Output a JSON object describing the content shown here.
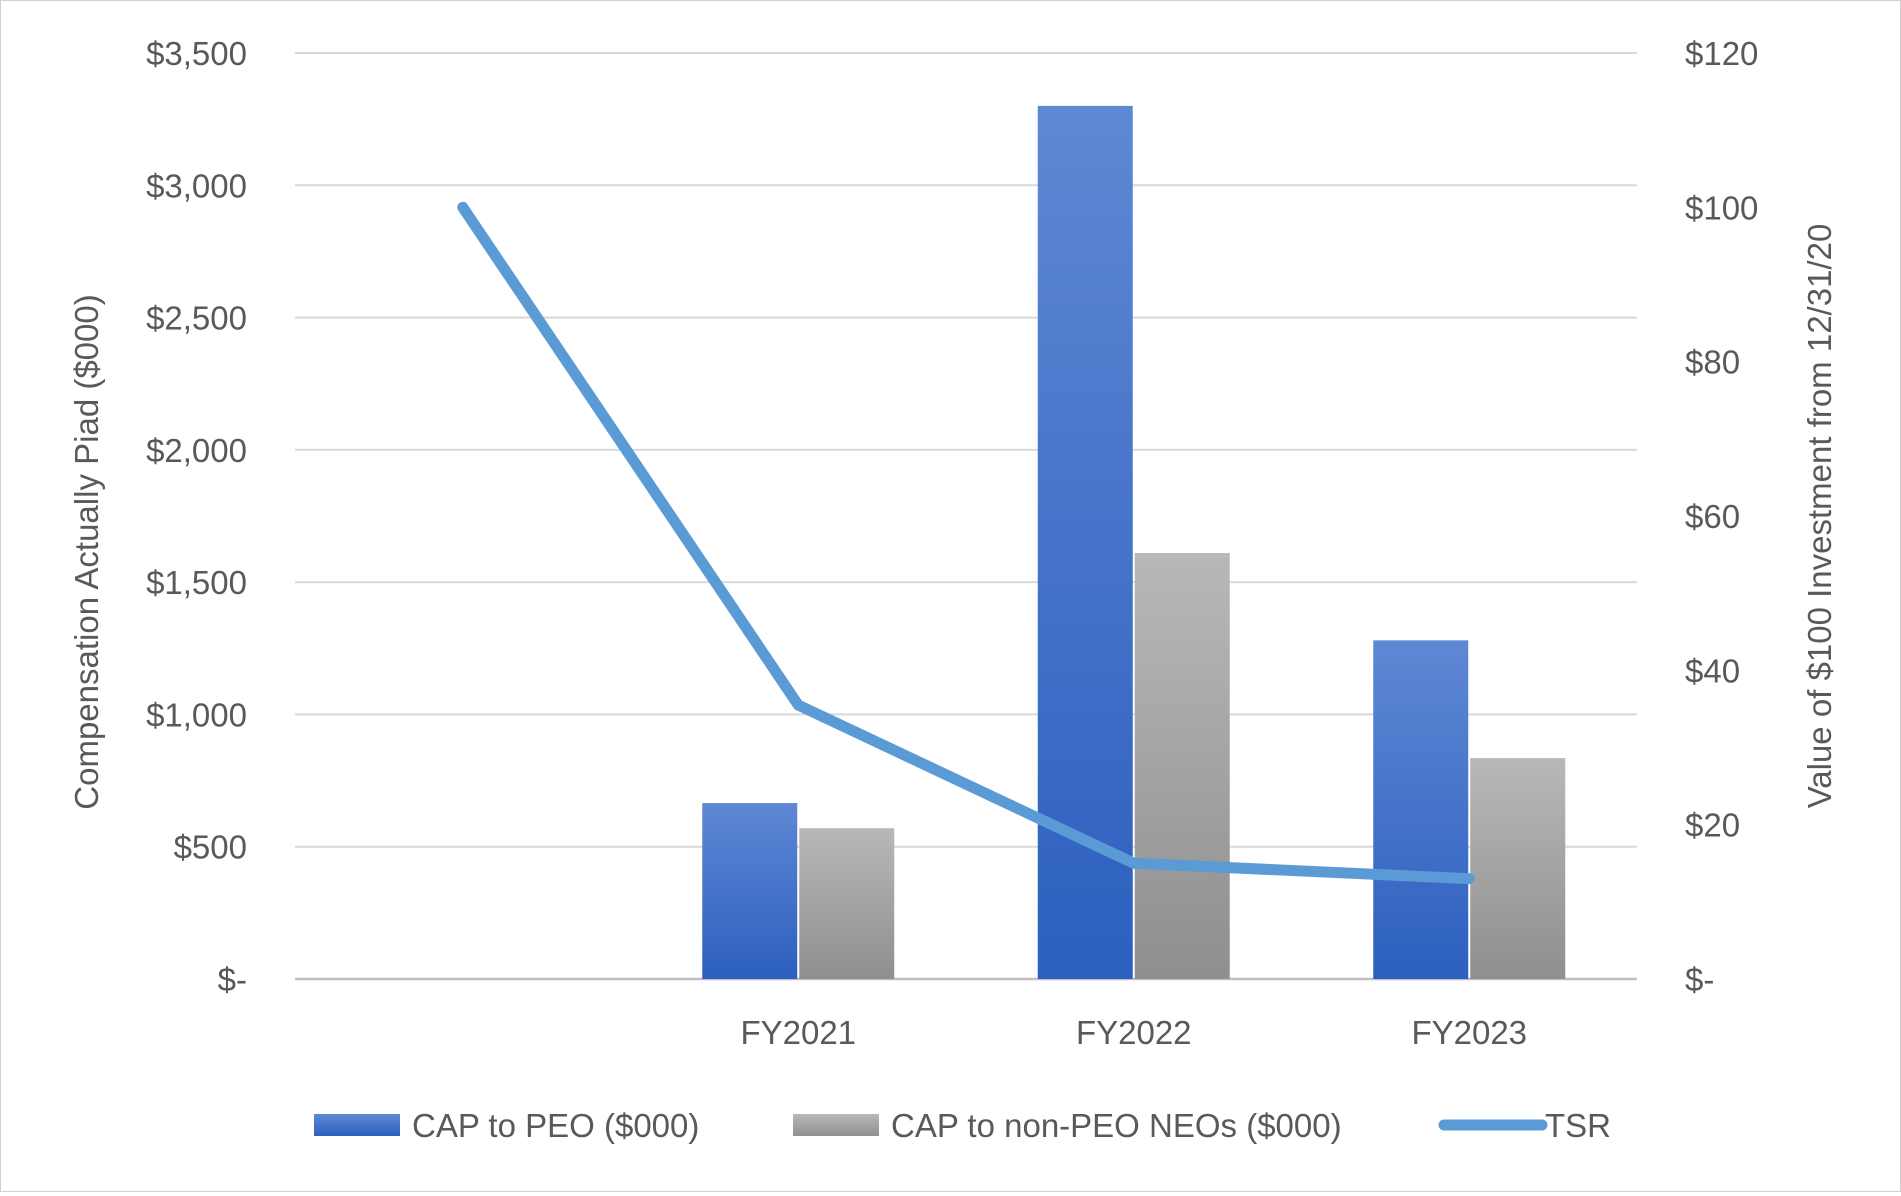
{
  "chart_data": {
    "type": "bar",
    "categories": [
      "",
      "FY2021",
      "FY2022",
      "FY2023"
    ],
    "series": [
      {
        "name": "CAP to PEO ($000)",
        "kind": "bar",
        "axis": "left",
        "values": [
          null,
          665,
          3300,
          1280
        ],
        "color": "#3a6bc9"
      },
      {
        "name": "CAP to non-PEO NEOs ($000)",
        "kind": "bar",
        "axis": "left",
        "values": [
          null,
          570,
          1610,
          835
        ],
        "color": "#a5a5a5"
      },
      {
        "name": "TSR",
        "kind": "line",
        "axis": "right",
        "values": [
          100,
          35.5,
          15,
          13
        ],
        "color": "#5b9bd5"
      }
    ],
    "ylabel": "Compensation Actually Piad ($000)",
    "y2label": "Value of $100 Investment from 12/31/20",
    "ylim": [
      0,
      3500
    ],
    "y2lim": [
      0,
      120
    ],
    "yticks": [
      {
        "value": 0,
        "label": "$-"
      },
      {
        "value": 500,
        "label": "$500"
      },
      {
        "value": 1000,
        "label": "$1,000"
      },
      {
        "value": 1500,
        "label": "$1,500"
      },
      {
        "value": 2000,
        "label": "$2,000"
      },
      {
        "value": 2500,
        "label": "$2,500"
      },
      {
        "value": 3000,
        "label": "$3,000"
      },
      {
        "value": 3500,
        "label": "$3,500"
      }
    ],
    "y2ticks": [
      {
        "value": 0,
        "label": "$-"
      },
      {
        "value": 20,
        "label": "$20"
      },
      {
        "value": 40,
        "label": "$40"
      },
      {
        "value": 60,
        "label": "$60"
      },
      {
        "value": 80,
        "label": "$80"
      },
      {
        "value": 100,
        "label": "$100"
      },
      {
        "value": 120,
        "label": "$120"
      }
    ],
    "grid": true,
    "legend": "bottom"
  }
}
